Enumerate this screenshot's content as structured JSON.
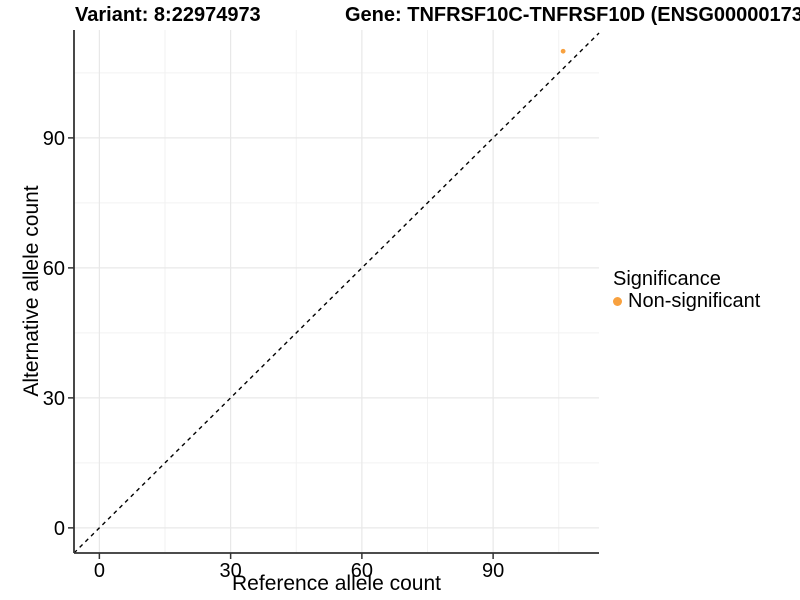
{
  "titles": {
    "variant": "Variant: 8:22974973",
    "gene": "Gene: TNFRSF10C-TNFRSF10D (ENSG00000173"
  },
  "legend": {
    "title": "Significance",
    "items": [
      {
        "label": "Non-significant",
        "color": "#F8A13F"
      }
    ]
  },
  "colors": {
    "background": "#ffffff",
    "axis_line": "#333333",
    "tick_mark": "#333333",
    "tick_label": "#000000",
    "grid_major": "#e8e8e8",
    "grid_minor": "#f2f2f2",
    "identity_line": "#000000",
    "point": "#F8A13F"
  },
  "chart_data": {
    "type": "scatter",
    "title": "",
    "xlabel": "Reference allele count",
    "ylabel": "Alternative allele count",
    "xlim": [
      -5.8,
      114.2
    ],
    "ylim": [
      -5.8,
      114.9
    ],
    "x_ticks": [
      0,
      30,
      60,
      90
    ],
    "y_ticks": [
      0,
      30,
      60,
      90
    ],
    "x_minor_ticks": [
      15,
      45,
      75,
      105
    ],
    "y_minor_ticks": [
      15,
      45,
      75,
      105
    ],
    "grid": true,
    "legend_position": "right",
    "identity_line": {
      "slope": 1,
      "intercept": 0,
      "style": "dashed"
    },
    "series": [
      {
        "name": "Non-significant",
        "color": "#F8A13F",
        "points": [
          {
            "x": 106,
            "y": 110
          }
        ]
      }
    ]
  }
}
